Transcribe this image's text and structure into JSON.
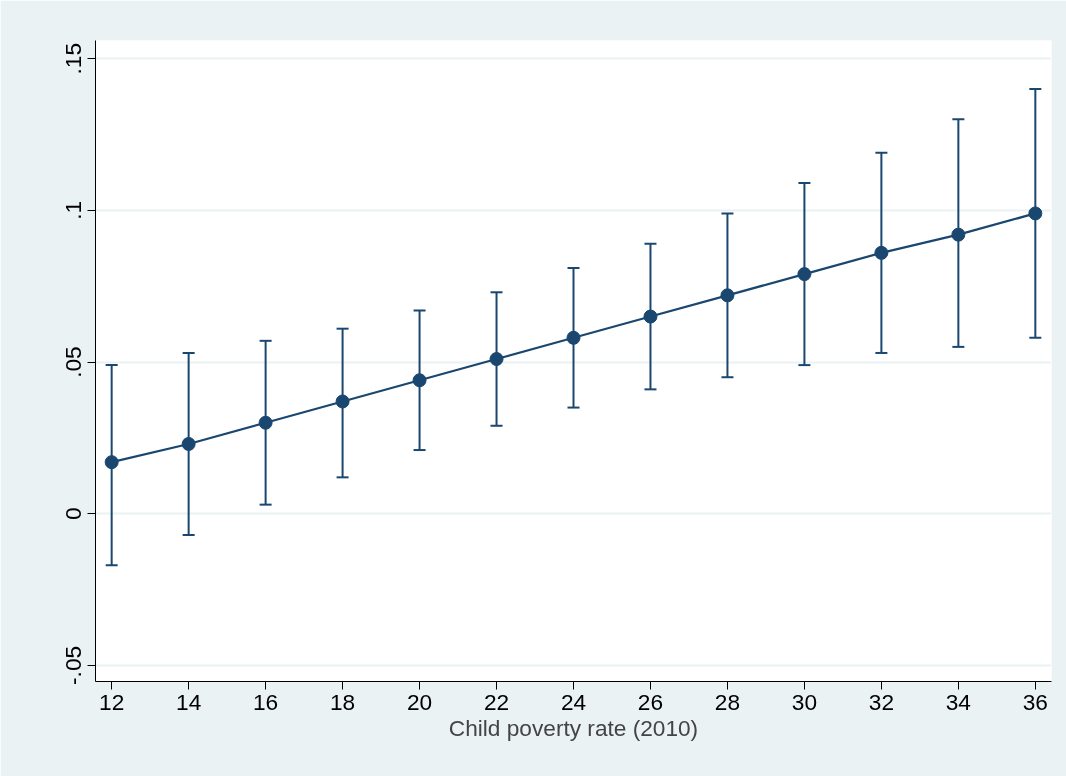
{
  "chart_data": {
    "type": "line",
    "xlabel": "Child poverty rate (2010)",
    "x": [
      12,
      14,
      16,
      18,
      20,
      22,
      24,
      26,
      28,
      30,
      32,
      34,
      36
    ],
    "series": [
      {
        "color": "#1a476f",
        "values": [
          0.017,
          0.023,
          0.03,
          0.037,
          0.044,
          0.051,
          0.058,
          0.065,
          0.072,
          0.079,
          0.086,
          0.092,
          0.099
        ],
        "errors": [
          [
            -0.017,
            0.049
          ],
          [
            -0.007,
            0.053
          ],
          [
            0.003,
            0.057
          ],
          [
            0.012,
            0.061
          ],
          [
            0.021,
            0.067
          ],
          [
            0.029,
            0.073
          ],
          [
            0.035,
            0.081
          ],
          [
            0.041,
            0.089
          ],
          [
            0.045,
            0.099
          ],
          [
            0.049,
            0.109
          ],
          [
            0.053,
            0.119
          ],
          [
            0.055,
            0.13
          ],
          [
            0.058,
            0.14
          ]
        ]
      }
    ],
    "xlim": [
      11.58,
      36.42
    ],
    "xticks": [
      12,
      14,
      16,
      18,
      20,
      22,
      24,
      26,
      28,
      30,
      32,
      34,
      36
    ],
    "ylim": [
      -0.0553,
      0.156
    ],
    "yticks": [
      {
        "value": -0.05,
        "label": "-.05"
      },
      0,
      {
        "value": 0.05,
        "label": ".05"
      },
      {
        "value": 0.1,
        "label": ".1"
      },
      {
        "value": 0.15,
        "label": ".15"
      }
    ],
    "grid": "y",
    "marker": "circle",
    "line_style": "solid"
  }
}
